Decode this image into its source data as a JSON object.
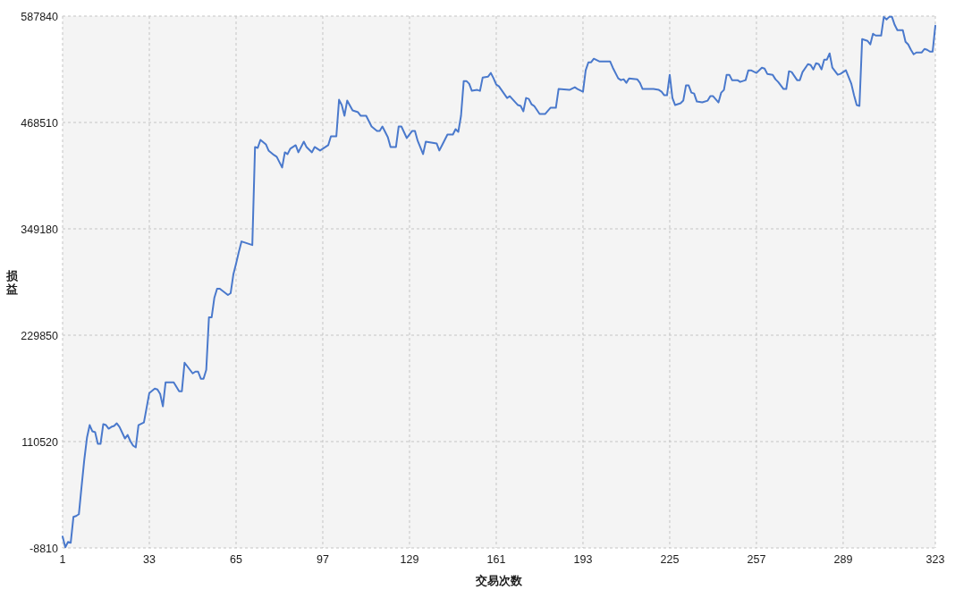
{
  "chart_data": {
    "type": "line",
    "xlabel": "交易次数",
    "ylabel": "损益",
    "x": [
      1,
      2,
      3,
      4,
      5,
      6,
      7,
      8,
      9,
      10,
      11,
      12,
      13,
      14,
      15,
      16,
      17,
      18,
      19,
      20,
      21,
      22,
      24,
      25,
      26,
      27,
      28,
      29,
      31,
      33,
      35,
      36,
      37,
      38,
      39,
      41,
      42,
      43,
      44,
      45,
      46,
      47,
      49,
      50,
      51,
      52,
      53,
      54,
      55,
      56,
      57,
      58,
      59,
      62,
      63,
      64,
      65,
      66,
      67,
      68,
      71,
      72,
      73,
      74,
      76,
      77,
      79,
      80,
      82,
      83,
      84,
      85,
      87,
      88,
      90,
      91,
      93,
      94,
      96,
      98,
      99,
      100,
      102,
      103,
      104,
      105,
      106,
      108,
      110,
      111,
      113,
      115,
      117,
      118,
      119,
      121,
      122,
      124,
      125,
      126,
      128,
      130,
      131,
      132,
      134,
      135,
      137,
      139,
      140,
      141,
      143,
      145,
      146,
      147,
      148,
      149,
      150,
      151,
      152,
      154,
      155,
      156,
      158,
      159,
      160,
      161,
      162,
      165,
      166,
      169,
      170,
      171,
      172,
      173,
      174,
      175,
      177,
      179,
      181,
      183,
      184,
      188,
      190,
      191,
      193,
      194,
      195,
      196,
      197,
      199,
      203,
      204,
      206,
      207,
      208,
      209,
      210,
      213,
      214,
      215,
      216,
      219,
      221,
      222,
      223,
      224,
      225,
      226,
      227,
      229,
      230,
      231,
      232,
      233,
      234,
      235,
      237,
      239,
      240,
      241,
      243,
      244,
      245,
      246,
      247,
      248,
      250,
      251,
      253,
      254,
      255,
      257,
      259,
      260,
      261,
      263,
      264,
      265,
      266,
      267,
      268,
      269,
      270,
      272,
      273,
      274,
      276,
      277,
      278,
      279,
      280,
      281,
      282,
      283,
      284,
      285,
      287,
      288,
      290,
      292,
      293,
      294,
      295,
      296,
      297,
      298,
      299,
      300,
      301,
      303,
      304,
      305,
      306,
      307,
      308,
      309,
      311,
      312,
      313,
      314,
      315,
      316,
      318,
      319,
      320,
      321,
      322,
      323
    ],
    "series": [
      {
        "color": "#4a79cc",
        "values": [
          4000,
          -8000,
          -2000,
          -3000,
          26000,
          27000,
          29000,
          60000,
          90000,
          115000,
          129000,
          122000,
          121000,
          108000,
          108000,
          130000,
          129000,
          125000,
          127000,
          128000,
          131000,
          127000,
          114000,
          118000,
          111000,
          106000,
          104000,
          129000,
          132000,
          165000,
          170000,
          169000,
          164000,
          150000,
          177000,
          177000,
          177000,
          172000,
          167000,
          167000,
          199000,
          195000,
          187000,
          189000,
          189000,
          181000,
          181000,
          191000,
          250000,
          250000,
          272000,
          282000,
          282000,
          275000,
          277000,
          298000,
          310000,
          323000,
          335000,
          334000,
          331000,
          441000,
          440000,
          449000,
          444000,
          437000,
          432000,
          430000,
          418000,
          435000,
          433000,
          439000,
          443000,
          435000,
          447000,
          441000,
          435000,
          441000,
          437000,
          441000,
          443000,
          453000,
          453000,
          494000,
          488000,
          476000,
          493000,
          482000,
          480000,
          476000,
          476000,
          464000,
          459000,
          459000,
          464000,
          452000,
          441000,
          441000,
          464000,
          464000,
          451000,
          459000,
          459000,
          448000,
          433000,
          447000,
          446000,
          445000,
          437000,
          443000,
          455000,
          455000,
          461000,
          458000,
          476000,
          515000,
          515000,
          512000,
          504000,
          505000,
          504000,
          519000,
          520000,
          524000,
          518000,
          511000,
          509000,
          496000,
          498000,
          488000,
          487000,
          481000,
          496000,
          495000,
          489000,
          487000,
          478000,
          478000,
          485000,
          485000,
          506000,
          505000,
          508000,
          506000,
          503000,
          527000,
          536000,
          536000,
          540000,
          537000,
          537000,
          530000,
          518000,
          516000,
          517000,
          513000,
          518000,
          517000,
          513000,
          506000,
          506000,
          506000,
          505000,
          503000,
          499000,
          499000,
          522000,
          496000,
          488000,
          490000,
          493000,
          510000,
          510000,
          502000,
          501000,
          492000,
          491000,
          493000,
          498000,
          498000,
          491000,
          502000,
          505000,
          522000,
          522000,
          516000,
          516000,
          514000,
          516000,
          527000,
          527000,
          524000,
          530000,
          529000,
          523000,
          522000,
          517000,
          514000,
          510000,
          506000,
          506000,
          526000,
          525000,
          516000,
          516000,
          525000,
          534000,
          533000,
          528000,
          535000,
          534000,
          528000,
          539000,
          539000,
          546000,
          530000,
          522000,
          523000,
          527000,
          512000,
          499000,
          488000,
          487000,
          562000,
          561000,
          560000,
          556000,
          568000,
          566000,
          566000,
          587000,
          584000,
          587000,
          587000,
          578000,
          572000,
          572000,
          559000,
          556000,
          550000,
          545000,
          547000,
          547000,
          551000,
          550000,
          548000,
          548000,
          577000
        ]
      }
    ],
    "xlim": [
      1,
      323
    ],
    "xticks": [
      1,
      33,
      65,
      97,
      129,
      161,
      193,
      225,
      257,
      289,
      323
    ],
    "ylim": [
      -8810,
      587840
    ],
    "yticks": [
      -8810,
      110520,
      229850,
      349180,
      468510,
      587840
    ],
    "grid": true,
    "line_style": "solid"
  }
}
